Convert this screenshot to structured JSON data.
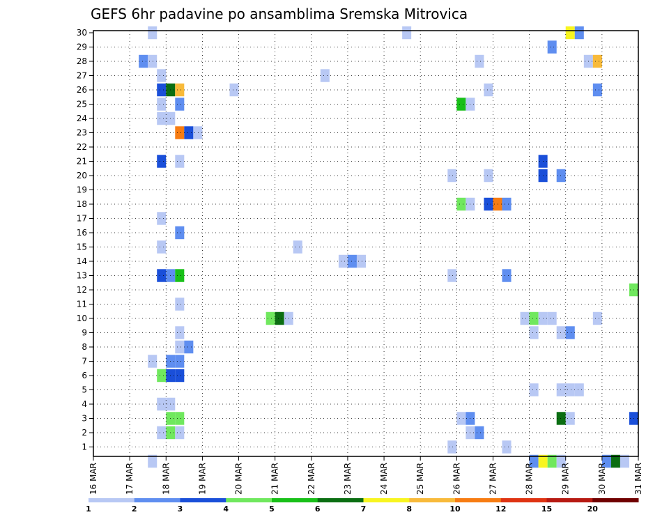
{
  "chart_data": {
    "type": "heatmap",
    "title": "GEFS 6hr padavine po ansamblima Sremska Mitrovica",
    "xlabel": "",
    "ylabel": "",
    "x_tick_labels": [
      "16 MAR",
      "17 MAR",
      "18 MAR",
      "19 MAR",
      "20 MAR",
      "21 MAR",
      "22 MAR",
      "23 MAR",
      "24 MAR",
      "25 MAR",
      "26 MAR",
      "27 MAR",
      "28 MAR",
      "29 MAR",
      "30 MAR",
      "31 MAR"
    ],
    "x_range_days": [
      0,
      15
    ],
    "steps_per_day": 4,
    "y_tick_labels": [
      "1",
      "2",
      "3",
      "4",
      "5",
      "6",
      "7",
      "8",
      "9",
      "10",
      "11",
      "12",
      "13",
      "14",
      "15",
      "16",
      "17",
      "18",
      "19",
      "20",
      "21",
      "22",
      "23",
      "24",
      "25",
      "26",
      "27",
      "28",
      "29",
      "30"
    ],
    "y_range_members": [
      0,
      30
    ],
    "grid": true,
    "legend": {
      "placement": "bottom",
      "labels": [
        "1",
        "2",
        "3",
        "4",
        "5",
        "6",
        "7",
        "8",
        "10",
        "12",
        "15",
        "20"
      ],
      "colors": [
        "#b8c8f4",
        "#5f8ef0",
        "#1a4fd9",
        "#70e85e",
        "#18c018",
        "#0b6e12",
        "#f8f520",
        "#f8ba3a",
        "#f77c12",
        "#df3312",
        "#b71a12",
        "#700000"
      ]
    },
    "cells": [
      {
        "t": 6,
        "m": 30,
        "c": 1
      },
      {
        "t": 5,
        "m": 28,
        "c": 2
      },
      {
        "t": 6,
        "m": 28,
        "c": 1
      },
      {
        "t": 7,
        "m": 27,
        "c": 1
      },
      {
        "t": 7,
        "m": 26,
        "c": 3
      },
      {
        "t": 8,
        "m": 26,
        "c": 6
      },
      {
        "t": 9,
        "m": 26,
        "c": 8
      },
      {
        "t": 7,
        "m": 25,
        "c": 1
      },
      {
        "t": 9,
        "m": 25,
        "c": 2
      },
      {
        "t": 7,
        "m": 24,
        "c": 1
      },
      {
        "t": 8,
        "m": 24,
        "c": 1
      },
      {
        "t": 9,
        "m": 23,
        "c": 9
      },
      {
        "t": 10,
        "m": 23,
        "c": 3
      },
      {
        "t": 11,
        "m": 23,
        "c": 1
      },
      {
        "t": 7,
        "m": 21,
        "c": 3
      },
      {
        "t": 9,
        "m": 21,
        "c": 1
      },
      {
        "t": 7,
        "m": 17,
        "c": 1
      },
      {
        "t": 9,
        "m": 16,
        "c": 2
      },
      {
        "t": 7,
        "m": 15,
        "c": 1
      },
      {
        "t": 7,
        "m": 13,
        "c": 3
      },
      {
        "t": 8,
        "m": 13,
        "c": 2
      },
      {
        "t": 9,
        "m": 13,
        "c": 5
      },
      {
        "t": 9,
        "m": 11,
        "c": 1
      },
      {
        "t": 9,
        "m": 9,
        "c": 1
      },
      {
        "t": 9,
        "m": 8,
        "c": 1
      },
      {
        "t": 10,
        "m": 8,
        "c": 2
      },
      {
        "t": 6,
        "m": 7,
        "c": 1
      },
      {
        "t": 8,
        "m": 7,
        "c": 2
      },
      {
        "t": 9,
        "m": 7,
        "c": 2
      },
      {
        "t": 7,
        "m": 6,
        "c": 4
      },
      {
        "t": 8,
        "m": 6,
        "c": 3
      },
      {
        "t": 9,
        "m": 6,
        "c": 3
      },
      {
        "t": 7,
        "m": 4,
        "c": 1
      },
      {
        "t": 8,
        "m": 4,
        "c": 1
      },
      {
        "t": 8,
        "m": 3,
        "c": 4
      },
      {
        "t": 9,
        "m": 3,
        "c": 4
      },
      {
        "t": 7,
        "m": 2,
        "c": 1
      },
      {
        "t": 8,
        "m": 2,
        "c": 4
      },
      {
        "t": 9,
        "m": 2,
        "c": 1
      },
      {
        "t": 15,
        "m": 26,
        "c": 1
      },
      {
        "t": 19,
        "m": 10,
        "c": 4
      },
      {
        "t": 20,
        "m": 10,
        "c": 6
      },
      {
        "t": 21,
        "m": 10,
        "c": 1
      },
      {
        "t": 22,
        "m": 15,
        "c": 1
      },
      {
        "t": 25,
        "m": 27,
        "c": 1
      },
      {
        "t": 27,
        "m": 14,
        "c": 1
      },
      {
        "t": 28,
        "m": 14,
        "c": 2
      },
      {
        "t": 29,
        "m": 14,
        "c": 1
      },
      {
        "t": 34,
        "m": 30,
        "c": 1
      },
      {
        "t": 39,
        "m": 20,
        "c": 1
      },
      {
        "t": 39,
        "m": 13,
        "c": 1
      },
      {
        "t": 39,
        "m": 1,
        "c": 1
      },
      {
        "t": 40,
        "m": 25,
        "c": 5
      },
      {
        "t": 41,
        "m": 25,
        "c": 1
      },
      {
        "t": 40,
        "m": 18,
        "c": 4
      },
      {
        "t": 41,
        "m": 18,
        "c": 1
      },
      {
        "t": 40,
        "m": 3,
        "c": 1
      },
      {
        "t": 41,
        "m": 3,
        "c": 2
      },
      {
        "t": 41,
        "m": 2,
        "c": 1
      },
      {
        "t": 42,
        "m": 2,
        "c": 2
      },
      {
        "t": 42,
        "m": 28,
        "c": 1
      },
      {
        "t": 43,
        "m": 26,
        "c": 1
      },
      {
        "t": 43,
        "m": 20,
        "c": 1
      },
      {
        "t": 43,
        "m": 18,
        "c": 3
      },
      {
        "t": 44,
        "m": 18,
        "c": 9
      },
      {
        "t": 45,
        "m": 18,
        "c": 2
      },
      {
        "t": 45,
        "m": 13,
        "c": 2
      },
      {
        "t": 45,
        "m": 1,
        "c": 1
      },
      {
        "t": 47,
        "m": 10,
        "c": 1
      },
      {
        "t": 48,
        "m": 10,
        "c": 4
      },
      {
        "t": 49,
        "m": 10,
        "c": 1
      },
      {
        "t": 50,
        "m": 10,
        "c": 1
      },
      {
        "t": 48,
        "m": 9,
        "c": 1
      },
      {
        "t": 48,
        "m": 5,
        "c": 1
      },
      {
        "t": 49,
        "m": 21,
        "c": 3
      },
      {
        "t": 49,
        "m": 20,
        "c": 3
      },
      {
        "t": 50,
        "m": 29,
        "c": 2
      },
      {
        "t": 51,
        "m": 20,
        "c": 2
      },
      {
        "t": 51,
        "m": 9,
        "c": 1
      },
      {
        "t": 52,
        "m": 9,
        "c": 2
      },
      {
        "t": 51,
        "m": 5,
        "c": 1
      },
      {
        "t": 52,
        "m": 5,
        "c": 1
      },
      {
        "t": 53,
        "m": 5,
        "c": 1
      },
      {
        "t": 51,
        "m": 3,
        "c": 6
      },
      {
        "t": 52,
        "m": 3,
        "c": 1
      },
      {
        "t": 52,
        "m": 30,
        "c": 7
      },
      {
        "t": 53,
        "m": 30,
        "c": 2
      },
      {
        "t": 54,
        "m": 28,
        "c": 1
      },
      {
        "t": 55,
        "m": 28,
        "c": 8
      },
      {
        "t": 55,
        "m": 26,
        "c": 2
      },
      {
        "t": 55,
        "m": 10,
        "c": 1
      },
      {
        "t": 59,
        "m": 12,
        "c": 4
      },
      {
        "t": 59,
        "m": 3,
        "c": 3
      },
      {
        "t": 6,
        "m": 0,
        "c": 1
      },
      {
        "t": 48,
        "m": 0,
        "c": 2
      },
      {
        "t": 49,
        "m": 0,
        "c": 7
      },
      {
        "t": 50,
        "m": 0,
        "c": 4
      },
      {
        "t": 51,
        "m": 0,
        "c": 1
      },
      {
        "t": 56,
        "m": 0,
        "c": 2
      },
      {
        "t": 57,
        "m": 0,
        "c": 6
      },
      {
        "t": 58,
        "m": 0,
        "c": 1
      }
    ]
  }
}
